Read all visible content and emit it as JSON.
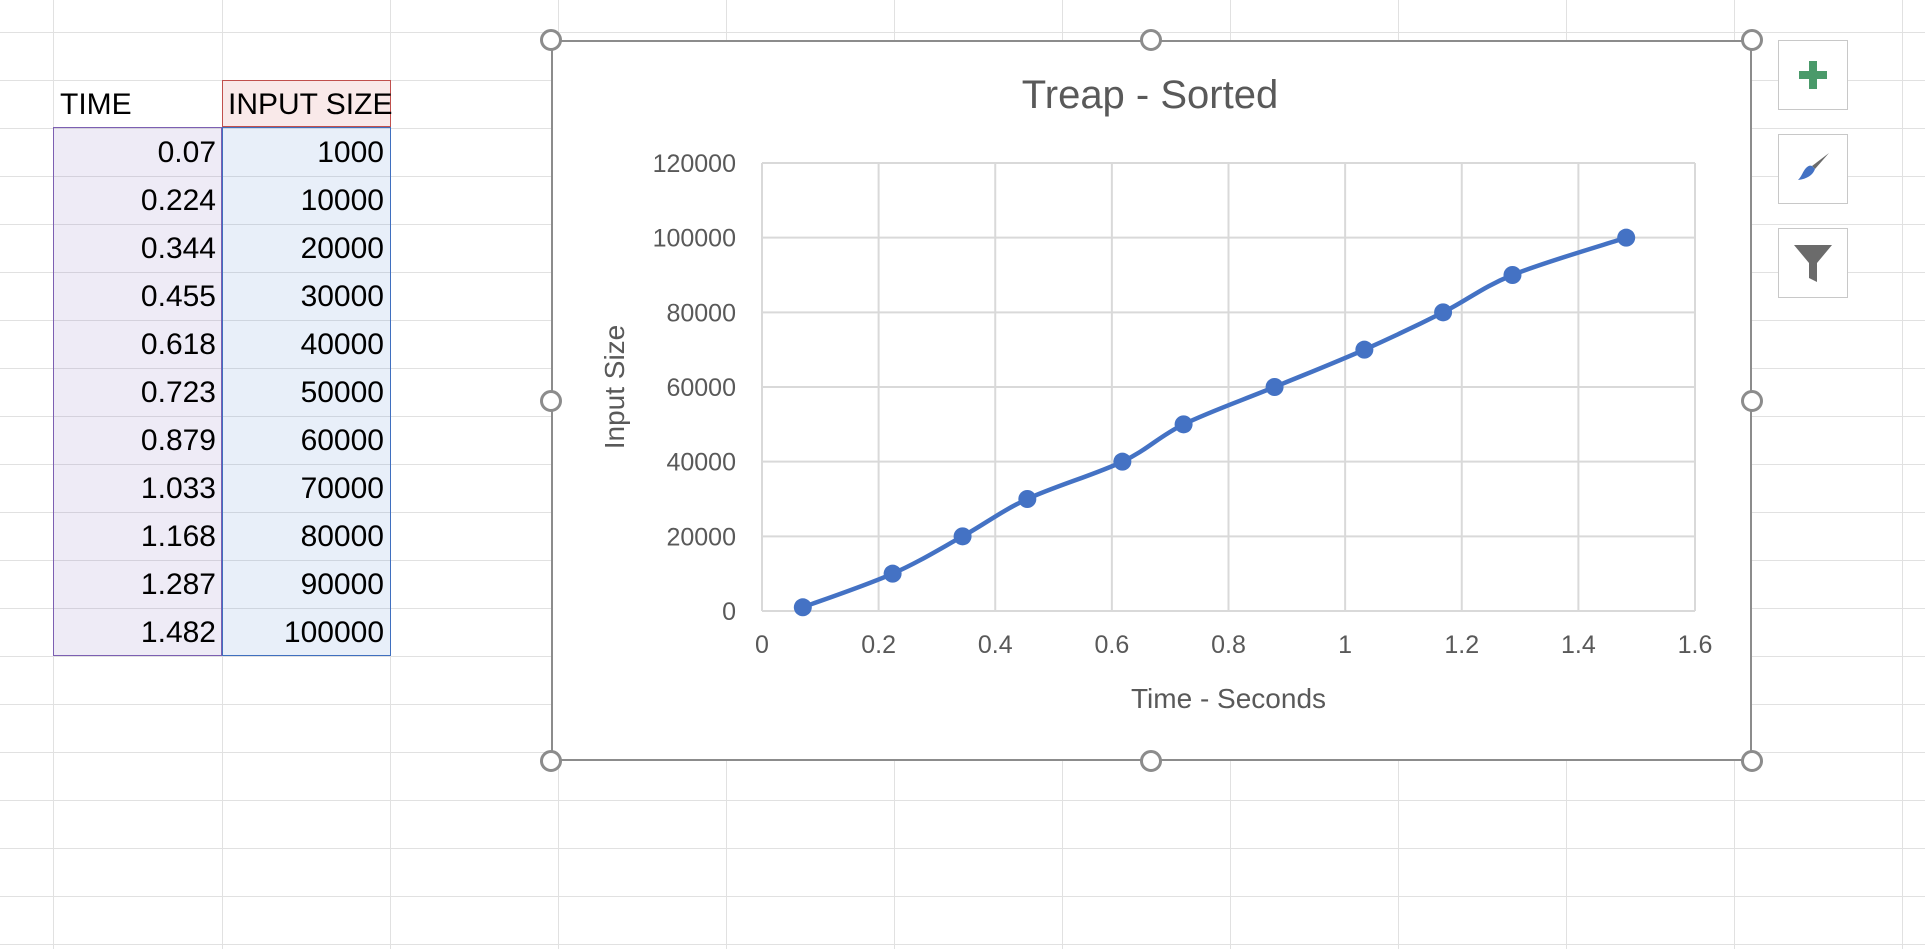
{
  "table": {
    "headers": [
      "TIME",
      "INPUT SIZE"
    ],
    "rows": [
      [
        "0.07",
        "1000"
      ],
      [
        "0.224",
        "10000"
      ],
      [
        "0.344",
        "20000"
      ],
      [
        "0.455",
        "30000"
      ],
      [
        "0.618",
        "40000"
      ],
      [
        "0.723",
        "50000"
      ],
      [
        "0.879",
        "60000"
      ],
      [
        "1.033",
        "70000"
      ],
      [
        "1.168",
        "80000"
      ],
      [
        "1.287",
        "90000"
      ],
      [
        "1.482",
        "100000"
      ]
    ]
  },
  "chart_data": {
    "type": "scatter",
    "title": "Treap - Sorted",
    "xlabel": "Time - Seconds",
    "ylabel": "Input Size",
    "xlim": [
      0,
      1.6
    ],
    "ylim": [
      0,
      120000
    ],
    "xticks": [
      "0",
      "0.2",
      "0.4",
      "0.6",
      "0.8",
      "1",
      "1.2",
      "1.4",
      "1.6"
    ],
    "yticks": [
      "0",
      "20000",
      "40000",
      "60000",
      "80000",
      "100000",
      "120000"
    ],
    "grid": true,
    "smooth_line": true,
    "series": [
      {
        "color": "#4472c4",
        "x": [
          0.07,
          0.224,
          0.344,
          0.455,
          0.618,
          0.723,
          0.879,
          1.033,
          1.168,
          1.287,
          1.482
        ],
        "y": [
          1000,
          10000,
          20000,
          30000,
          40000,
          50000,
          60000,
          70000,
          80000,
          90000,
          100000
        ]
      }
    ]
  },
  "chart_buttons": {
    "items": [
      {
        "name": "chart-elements-button",
        "icon": "plus-icon"
      },
      {
        "name": "chart-styles-button",
        "icon": "paintbrush-icon"
      },
      {
        "name": "chart-filters-button",
        "icon": "funnel-icon"
      }
    ]
  }
}
